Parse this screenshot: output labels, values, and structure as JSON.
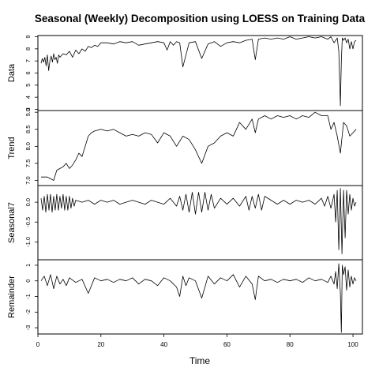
{
  "chart_data": {
    "type": "line",
    "title": "Seasonal (Weekly) Decomposition using LOESS on Training Data",
    "xlabel": "Time",
    "xlim": [
      0,
      103
    ],
    "x_ticks": [
      "0",
      "20",
      "40",
      "60",
      "80",
      "100"
    ],
    "x_tick_values": [
      0,
      20,
      40,
      60,
      80,
      100
    ],
    "panels": [
      {
        "name": "Data",
        "ylabel": "Data",
        "ylim": [
          2.9,
          9.1
        ],
        "tick_values": [
          3,
          4,
          5,
          6,
          7,
          8,
          9
        ],
        "tick_labels": [
          "3",
          "4",
          "5",
          "6",
          "7",
          "8",
          "9"
        ],
        "x": [
          1,
          1.4,
          1.8,
          2.2,
          2.6,
          3,
          3.4,
          3.8,
          4.2,
          4.6,
          5,
          5.4,
          5.8,
          6.2,
          6.6,
          7,
          8,
          9,
          10,
          11,
          12,
          13,
          14,
          15,
          16,
          17,
          18,
          19,
          20,
          22,
          24,
          26,
          28,
          30,
          32,
          34,
          36,
          38,
          40,
          41,
          42,
          43,
          44,
          45,
          46,
          48,
          50,
          52,
          54,
          56,
          58,
          60,
          62,
          64,
          66,
          68,
          69,
          70,
          72,
          74,
          76,
          78,
          80,
          82,
          84,
          86,
          88,
          90,
          92,
          93,
          94,
          95,
          95.5,
          96,
          96.3,
          96.6,
          97,
          97.5,
          98,
          98.5,
          99,
          99.5,
          100,
          100.5,
          101
        ],
        "y": [
          6.8,
          7.2,
          6.9,
          7.3,
          6.6,
          7.5,
          6.2,
          7.0,
          7.4,
          6.9,
          7.6,
          7.1,
          7.3,
          6.8,
          7.5,
          7.3,
          7.6,
          7.5,
          7.8,
          7.3,
          7.9,
          7.6,
          8.0,
          7.8,
          8.2,
          8.1,
          8.3,
          8.2,
          8.5,
          8.5,
          8.4,
          8.6,
          8.5,
          8.6,
          8.3,
          8.4,
          8.5,
          8.6,
          8.5,
          7.9,
          8.6,
          8.3,
          8.6,
          8.5,
          6.5,
          8.5,
          8.6,
          7.2,
          8.4,
          8.6,
          8.2,
          8.5,
          8.6,
          8.5,
          8.7,
          8.8,
          7.1,
          8.8,
          8.9,
          8.8,
          8.9,
          8.8,
          9.0,
          8.8,
          8.9,
          9.0,
          8.9,
          9.0,
          8.8,
          9.0,
          8.5,
          8.9,
          7.8,
          3.3,
          7.0,
          8.9,
          8.7,
          8.9,
          8.5,
          8.8,
          8.0,
          8.6,
          8.0,
          8.6,
          8.7
        ]
      },
      {
        "name": "Trend",
        "ylabel": "Trend",
        "ylim": [
          6.85,
          9.05
        ],
        "tick_values": [
          7.0,
          7.5,
          8.0,
          8.5,
          9.0
        ],
        "tick_labels": [
          "7.0",
          "7.5",
          "8.0",
          "8.5",
          "9.0"
        ],
        "x": [
          1,
          2,
          3,
          4,
          5,
          6,
          7,
          8,
          9,
          10,
          11,
          12,
          13,
          14,
          15,
          16,
          17,
          18,
          20,
          22,
          24,
          26,
          28,
          30,
          32,
          34,
          36,
          38,
          40,
          42,
          44,
          46,
          48,
          50,
          52,
          54,
          56,
          58,
          60,
          62,
          64,
          66,
          68,
          69,
          70,
          72,
          74,
          76,
          78,
          80,
          82,
          84,
          86,
          88,
          90,
          92,
          93,
          94,
          95,
          96,
          97,
          98,
          99,
          100,
          101
        ],
        "y": [
          7.1,
          7.1,
          7.1,
          7.05,
          7.0,
          7.3,
          7.35,
          7.4,
          7.5,
          7.35,
          7.45,
          7.6,
          7.8,
          7.7,
          8.0,
          8.3,
          8.4,
          8.45,
          8.5,
          8.45,
          8.5,
          8.4,
          8.3,
          8.35,
          8.3,
          8.4,
          8.35,
          8.1,
          8.4,
          8.3,
          8.0,
          8.3,
          8.2,
          7.9,
          7.5,
          8.0,
          8.1,
          8.3,
          8.4,
          8.3,
          8.7,
          8.5,
          8.8,
          8.4,
          8.8,
          8.9,
          8.8,
          8.9,
          8.85,
          8.9,
          8.8,
          8.9,
          8.85,
          9.0,
          8.9,
          8.9,
          8.5,
          8.7,
          8.3,
          7.8,
          8.7,
          8.6,
          8.3,
          8.4,
          8.5
        ]
      },
      {
        "name": "Seasonal7",
        "ylabel": "Seasonal7",
        "ylim": [
          -1.45,
          0.42
        ],
        "tick_values": [
          -1.0,
          -0.5,
          0.0
        ],
        "tick_labels": [
          "-1.0",
          "-0.5",
          "0.0"
        ],
        "x": [
          1,
          1.5,
          2,
          2.5,
          3,
          3.5,
          4,
          4.5,
          5,
          5.5,
          6,
          6.5,
          7,
          7.5,
          8,
          8.5,
          9,
          9.5,
          10,
          10.5,
          11,
          11.5,
          12,
          14,
          16,
          18,
          20,
          22,
          24,
          26,
          28,
          30,
          32,
          34,
          36,
          38,
          40,
          42,
          44,
          45,
          46,
          47,
          48,
          49,
          50,
          51,
          52,
          53,
          54,
          55,
          56,
          58,
          60,
          62,
          64,
          66,
          67,
          68,
          69,
          70,
          71,
          72,
          74,
          76,
          78,
          80,
          82,
          84,
          86,
          88,
          90,
          91,
          92,
          93,
          94,
          94.5,
          95,
          95.5,
          96,
          96.5,
          97,
          97.5,
          98,
          98.5,
          99,
          99.5,
          100,
          100.5,
          101
        ],
        "y": [
          0.1,
          -0.2,
          0.15,
          -0.25,
          0.2,
          -0.2,
          0.2,
          -0.25,
          0.15,
          -0.2,
          0.2,
          -0.2,
          0.15,
          -0.15,
          0.2,
          -0.2,
          0.15,
          -0.2,
          0.15,
          -0.15,
          0.1,
          -0.1,
          0.05,
          0.0,
          0.05,
          -0.05,
          0.05,
          0.0,
          0.05,
          -0.05,
          0.0,
          0.05,
          0.0,
          -0.05,
          0.05,
          0.0,
          -0.05,
          0.1,
          -0.1,
          0.15,
          -0.2,
          0.2,
          -0.25,
          0.25,
          -0.3,
          0.25,
          -0.25,
          0.25,
          -0.2,
          0.2,
          -0.15,
          0.1,
          -0.05,
          0.1,
          -0.1,
          0.15,
          -0.2,
          0.15,
          -0.15,
          0.2,
          -0.2,
          0.15,
          0.05,
          -0.05,
          0.05,
          -0.05,
          0.05,
          0.0,
          0.05,
          -0.05,
          0.1,
          -0.1,
          0.15,
          -0.15,
          0.2,
          -0.5,
          0.3,
          -1.2,
          0.35,
          -1.3,
          0.3,
          -0.9,
          0.3,
          -0.3,
          0.2,
          -0.2,
          0.1,
          -0.1,
          0.0
        ]
      },
      {
        "name": "Remainder",
        "ylabel": "Remainder",
        "ylim": [
          -3.4,
          1.35
        ],
        "tick_values": [
          -3,
          -2,
          -1,
          0,
          1
        ],
        "tick_labels": [
          "-3",
          "-2",
          "-1",
          "0",
          "1"
        ],
        "x": [
          1,
          2,
          3,
          4,
          5,
          6,
          7,
          8,
          9,
          10,
          12,
          14,
          16,
          18,
          20,
          22,
          24,
          26,
          28,
          30,
          32,
          34,
          36,
          38,
          40,
          42,
          44,
          45,
          46,
          47,
          48,
          50,
          52,
          54,
          56,
          58,
          60,
          62,
          64,
          66,
          68,
          69,
          70,
          72,
          74,
          76,
          78,
          80,
          82,
          84,
          86,
          88,
          90,
          92,
          93,
          94,
          94.5,
          95,
          95.5,
          96,
          96.3,
          96.6,
          97,
          97.5,
          98,
          98.5,
          99,
          99.5,
          100,
          100.5,
          101
        ],
        "y": [
          0.0,
          0.3,
          -0.3,
          0.4,
          -0.5,
          0.3,
          -0.2,
          0.1,
          -0.3,
          0.2,
          -0.1,
          0.1,
          -0.8,
          0.2,
          0.0,
          0.1,
          -0.1,
          0.1,
          0.0,
          0.2,
          -0.2,
          0.1,
          0.0,
          -0.3,
          0.2,
          0.0,
          -0.4,
          -1.0,
          0.3,
          -0.3,
          0.2,
          0.0,
          -1.1,
          0.3,
          -0.2,
          0.2,
          0.0,
          0.4,
          -0.4,
          0.3,
          -0.2,
          -1.2,
          0.3,
          0.0,
          0.1,
          -0.1,
          0.1,
          0.0,
          0.1,
          -0.1,
          0.2,
          0.0,
          0.1,
          -0.1,
          0.3,
          -0.2,
          0.6,
          -0.5,
          1.1,
          -0.8,
          -3.3,
          1.0,
          0.4,
          0.9,
          -0.6,
          0.7,
          -0.4,
          0.3,
          -0.2,
          0.2,
          0.0
        ]
      }
    ]
  }
}
